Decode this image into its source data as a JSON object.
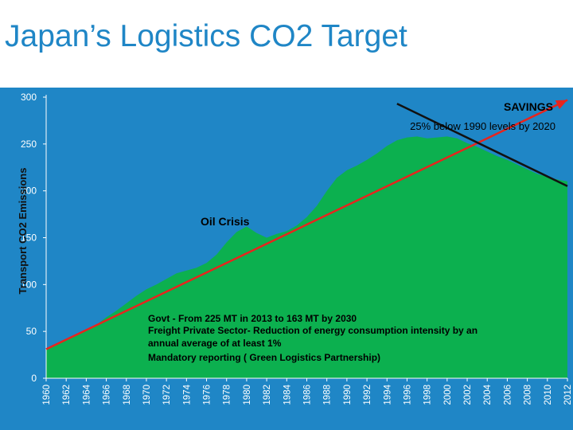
{
  "title": "Japan’s Logistics CO2 Target",
  "chart_data": {
    "type": "area",
    "ylabel": "Transport CO2 Emissions",
    "ylim": [
      0,
      300
    ],
    "yticks": [
      0,
      50,
      100,
      150,
      200,
      250,
      300
    ],
    "xlim": [
      1960,
      2012
    ],
    "xticks": [
      1960,
      1962,
      1964,
      1966,
      1968,
      1970,
      1972,
      1974,
      1976,
      1978,
      1980,
      1982,
      1984,
      1986,
      1988,
      1990,
      1992,
      1994,
      1996,
      1998,
      2000,
      2002,
      2004,
      2006,
      2008,
      2010,
      2012
    ],
    "grid": false,
    "series": [
      {
        "values": [
          [
            1960,
            30
          ],
          [
            1961,
            36
          ],
          [
            1962,
            41
          ],
          [
            1963,
            47
          ],
          [
            1964,
            52
          ],
          [
            1965,
            57
          ],
          [
            1966,
            65
          ],
          [
            1967,
            72
          ],
          [
            1968,
            80
          ],
          [
            1969,
            88
          ],
          [
            1970,
            95
          ],
          [
            1971,
            100
          ],
          [
            1972,
            106
          ],
          [
            1973,
            112
          ],
          [
            1974,
            115
          ],
          [
            1975,
            118
          ],
          [
            1976,
            123
          ],
          [
            1977,
            132
          ],
          [
            1978,
            145
          ],
          [
            1979,
            156
          ],
          [
            1980,
            162
          ],
          [
            1981,
            155
          ],
          [
            1982,
            150
          ],
          [
            1983,
            154
          ],
          [
            1984,
            157
          ],
          [
            1985,
            163
          ],
          [
            1986,
            172
          ],
          [
            1987,
            184
          ],
          [
            1988,
            200
          ],
          [
            1989,
            214
          ],
          [
            1990,
            222
          ],
          [
            1991,
            227
          ],
          [
            1992,
            233
          ],
          [
            1993,
            240
          ],
          [
            1994,
            248
          ],
          [
            1995,
            254
          ],
          [
            1996,
            257
          ],
          [
            1997,
            258
          ],
          [
            1998,
            256
          ],
          [
            1999,
            257
          ],
          [
            2000,
            258
          ],
          [
            2001,
            256
          ],
          [
            2002,
            251
          ],
          [
            2003,
            247
          ],
          [
            2004,
            242
          ],
          [
            2005,
            237
          ],
          [
            2006,
            233
          ],
          [
            2007,
            228
          ],
          [
            2008,
            223
          ],
          [
            2009,
            218
          ],
          [
            2010,
            215
          ],
          [
            2011,
            212
          ],
          [
            2012,
            210
          ]
        ]
      }
    ],
    "lines": [
      {
        "color": "#e8241d",
        "points": [
          [
            1960,
            31
          ],
          [
            2012,
            297
          ]
        ]
      },
      {
        "color": "#111111",
        "points": [
          [
            1995,
            293
          ],
          [
            2012,
            205
          ]
        ]
      }
    ],
    "annotations": {
      "savings_title": "SAVINGS",
      "savings_text": "25% below 1990 levels by 2020",
      "oil_crisis": "Oil Crisis",
      "govt_lines": [
        "Govt -  From 225 MT in 2013 to 163 MT by 2030",
        "Freight  Private Sector- Reduction of energy consumption intensity by an",
        "annual average of at least 1%",
        "Mandatory reporting ( Green Logistics Partnership)"
      ]
    },
    "colors": {
      "background": "#1f86c6",
      "area": "#0cb04f",
      "trend": "#e8241d",
      "target": "#111111"
    }
  }
}
